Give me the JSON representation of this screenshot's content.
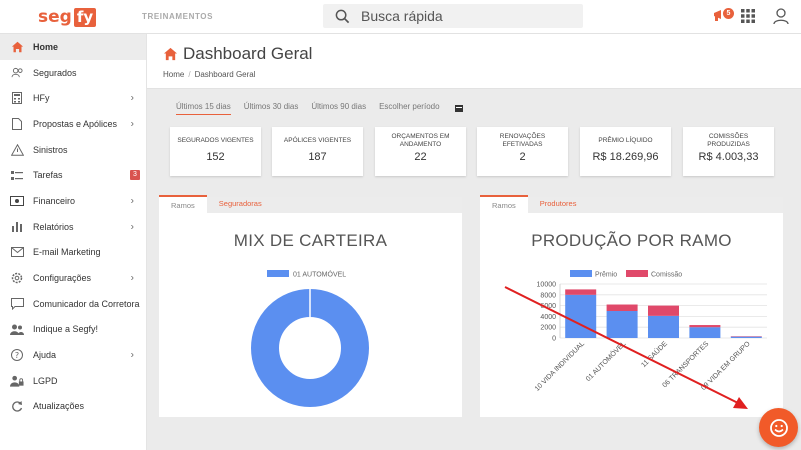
{
  "app": {
    "logo_seg": "seg",
    "logo_fy": "fy",
    "env_label": "TREINAMENTOS",
    "accent": "#e8613c"
  },
  "search": {
    "placeholder": "Busca rápida"
  },
  "topbar": {
    "notification_count": "5"
  },
  "sidebar": {
    "items": [
      {
        "label": "Home",
        "icon": "home-icon",
        "active": true
      },
      {
        "label": "Segurados",
        "icon": "users-icon"
      },
      {
        "label": "HFy",
        "icon": "calculator-icon",
        "chevron": true
      },
      {
        "label": "Propostas e Apólices",
        "icon": "document-icon",
        "chevron": true
      },
      {
        "label": "Sinistros",
        "icon": "warning-icon"
      },
      {
        "label": "Tarefas",
        "icon": "tasks-icon",
        "badge": "3"
      },
      {
        "label": "Financeiro",
        "icon": "money-icon",
        "chevron": true
      },
      {
        "label": "Relatórios",
        "icon": "bar-chart-icon",
        "chevron": true
      },
      {
        "label": "E-mail Marketing",
        "icon": "envelope-icon"
      },
      {
        "label": "Configurações",
        "icon": "gear-icon",
        "chevron": true
      },
      {
        "label": "Comunicador da Corretora",
        "icon": "chat-icon"
      },
      {
        "label": "Indique a Segfy!",
        "icon": "referral-icon"
      },
      {
        "label": "Ajuda",
        "icon": "help-icon",
        "chevron": true
      },
      {
        "label": "LGPD",
        "icon": "lgpd-icon"
      },
      {
        "label": "Atualizações",
        "icon": "refresh-icon"
      }
    ]
  },
  "page": {
    "title": "Dashboard Geral",
    "breadcrumb": {
      "root": "Home",
      "sep": "/",
      "current": "Dashboard Geral"
    }
  },
  "periods": [
    "Últimos 15 dias",
    "Últimos 30 dias",
    "Últimos 90 dias",
    "Escolher período"
  ],
  "stats": [
    {
      "label": "SEGURADOS VIGENTES",
      "value": "152"
    },
    {
      "label": "APÓLICES VIGENTES",
      "value": "187"
    },
    {
      "label": "ORÇAMENTOS EM ANDAMENTO",
      "value": "22"
    },
    {
      "label": "RENOVAÇÕES EFETIVADAS",
      "value": "2"
    },
    {
      "label": "PRÊMIO LÍQUIDO",
      "value": "R$ 18.269,96"
    },
    {
      "label": "COMISSÕES PRODUZIDAS",
      "value": "R$ 4.003,33"
    }
  ],
  "mix_card": {
    "tabs": [
      "Ramos",
      "Seguradoras"
    ],
    "title": "MIX DE CARTEIRA"
  },
  "prod_card": {
    "tabs": [
      "Ramos",
      "Produtores"
    ],
    "title": "PRODUÇÃO POR RAMO"
  },
  "chart_data": [
    {
      "type": "pie",
      "title": "MIX DE CARTEIRA",
      "legend": "top",
      "series": [
        {
          "name": "01 AUTOMÓVEL",
          "values": [
            100
          ],
          "color": "#5b8ff0"
        }
      ],
      "categories": [
        "01 AUTOMÓVEL"
      ]
    },
    {
      "type": "bar",
      "title": "PRODUÇÃO POR RAMO",
      "stacked": true,
      "legend": "top",
      "categories": [
        "10 VIDA INDIVIDUAL",
        "01 AUTOMÓVEL",
        "11 SAÚDE",
        "06 TRANSPORTES",
        "09 VIDA EM GRUPO"
      ],
      "series": [
        {
          "name": "Prêmio",
          "color": "#5b8ff0",
          "values": [
            8000,
            5000,
            4100,
            2000,
            250
          ]
        },
        {
          "name": "Comissão",
          "color": "#e0496a",
          "values": [
            1000,
            1200,
            1900,
            400,
            80
          ]
        }
      ],
      "yticks": [
        "10000",
        "8000",
        "6000",
        "4000",
        "2000",
        "0"
      ],
      "ylim": [
        0,
        10000
      ],
      "grid": true
    }
  ]
}
